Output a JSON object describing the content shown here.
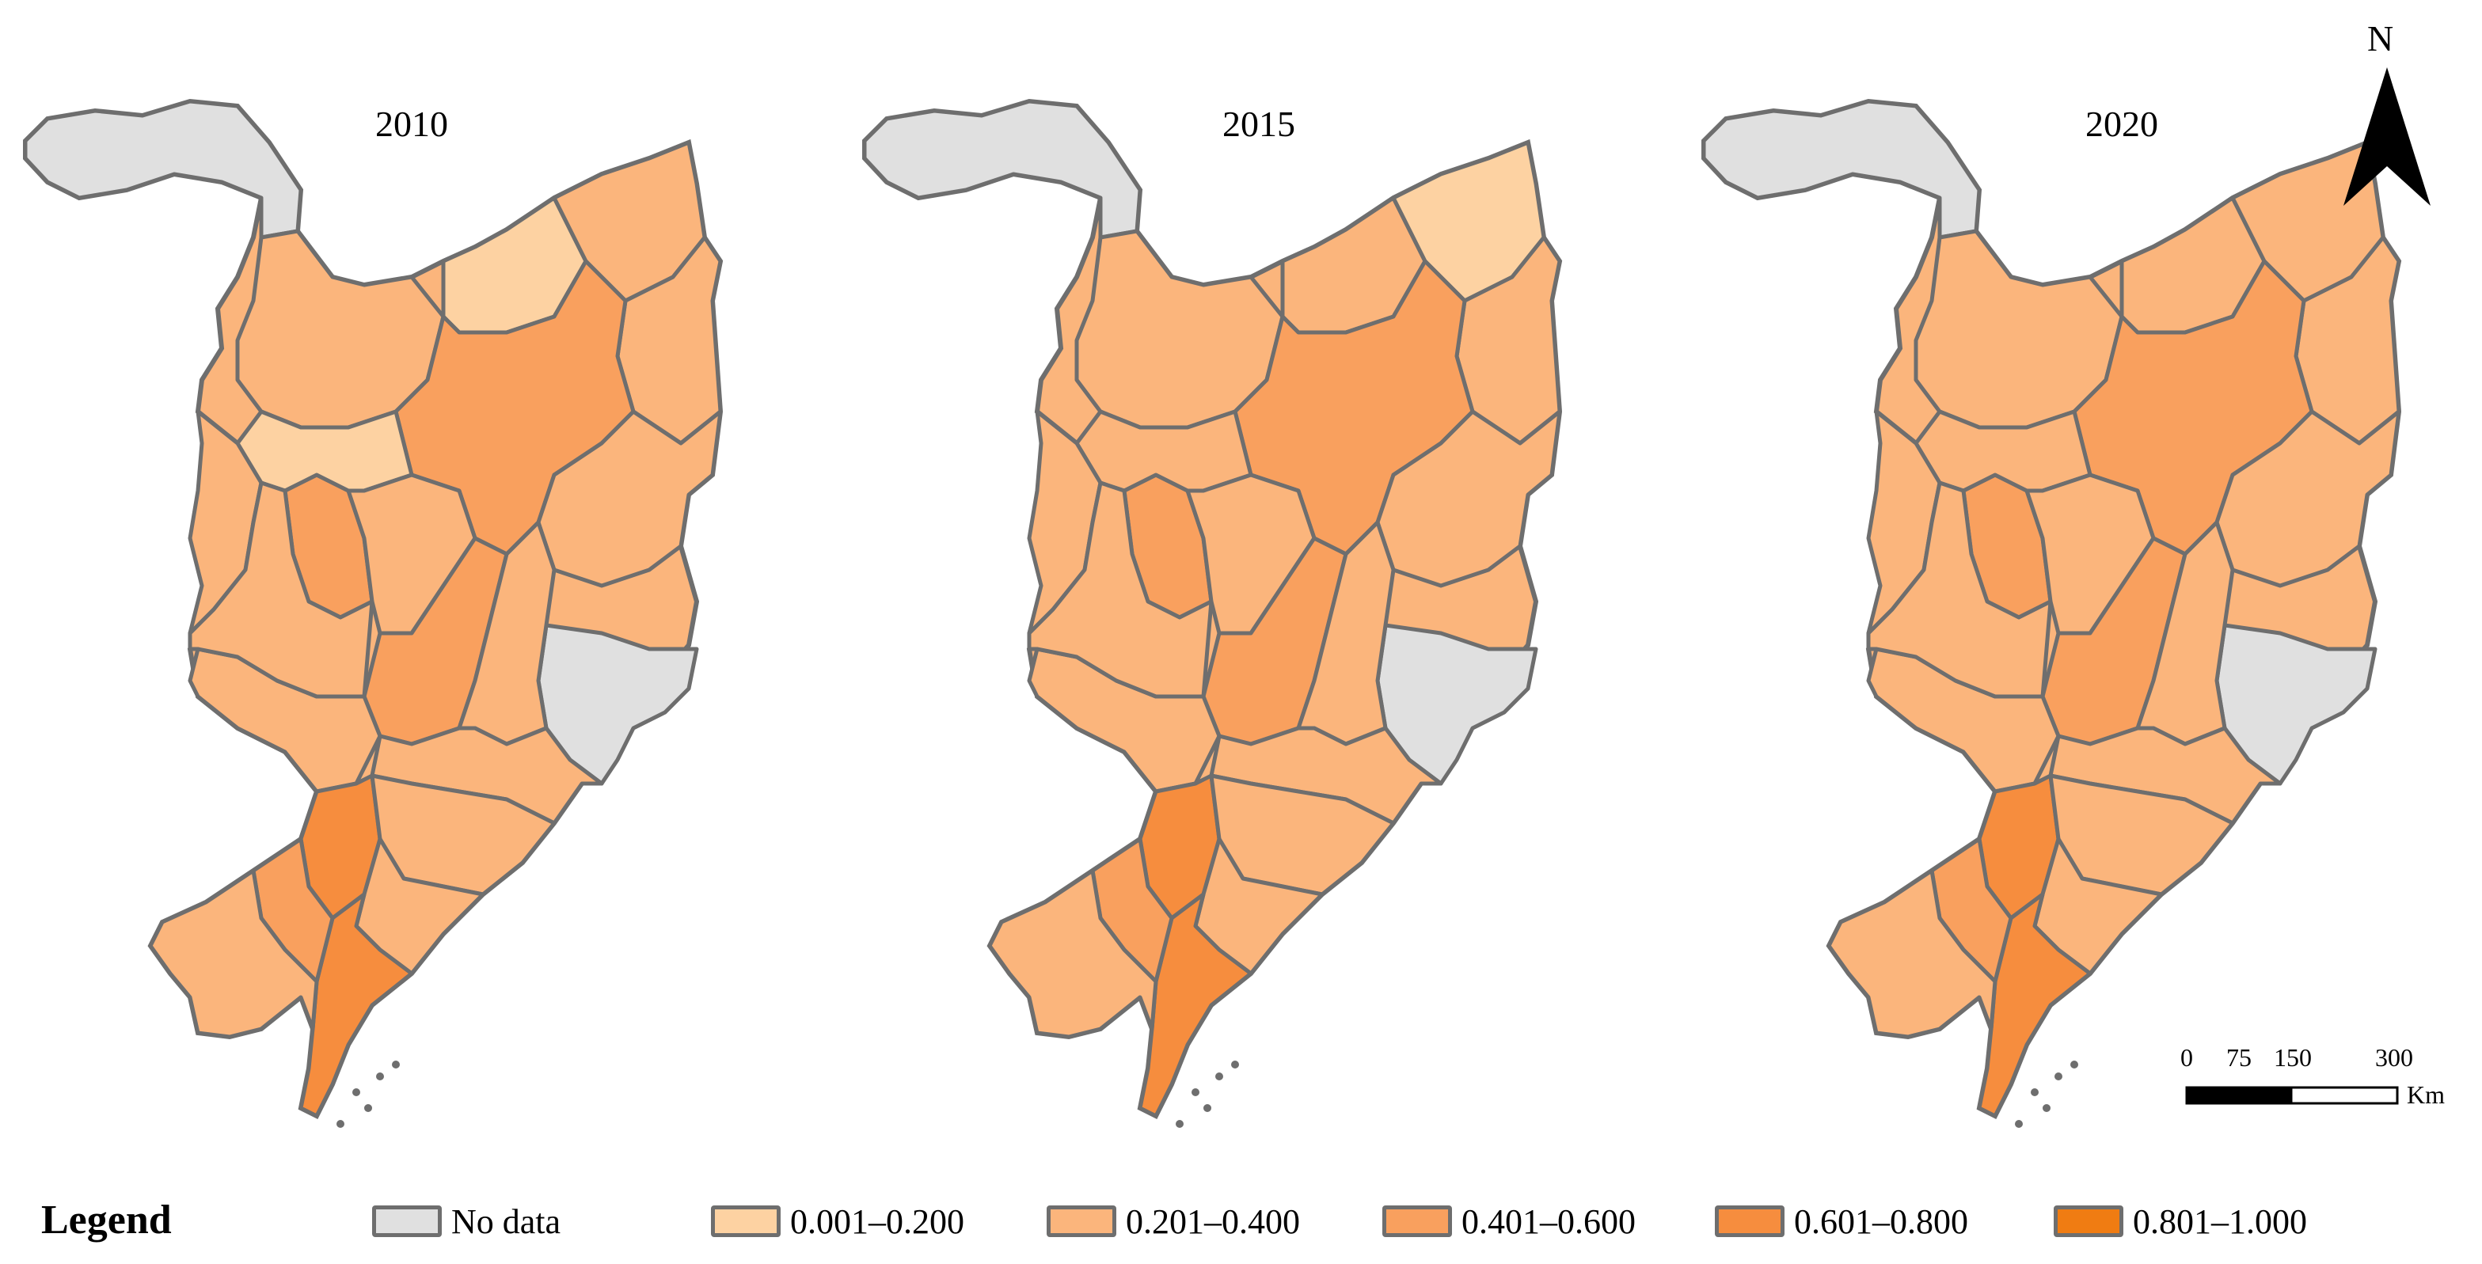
{
  "maps": [
    {
      "year": "2010"
    },
    {
      "year": "2015"
    },
    {
      "year": "2020"
    }
  ],
  "north_arrow": {
    "label": "N"
  },
  "scale_bar": {
    "ticks": [
      "0",
      "75",
      "150",
      "300"
    ],
    "unit": "Km"
  },
  "legend": {
    "title": "Legend",
    "items": [
      {
        "label": "No data",
        "color": "#e0e0e0"
      },
      {
        "label": "0.001–0.200",
        "color": "#fdd2a2"
      },
      {
        "label": "0.201–0.400",
        "color": "#fbb57c"
      },
      {
        "label": "0.401–0.600",
        "color": "#f9a05e"
      },
      {
        "label": "0.601–0.800",
        "color": "#f68d3e"
      },
      {
        "label": "0.801–1.000",
        "color": "#f07c12"
      }
    ]
  },
  "colors": {
    "border": "#6e6e6e",
    "no_data": "#e0e0e0",
    "class_1": "#fdd2a2",
    "class_2": "#fbb57c",
    "class_3": "#f9a05e",
    "class_4": "#f68d3e"
  }
}
